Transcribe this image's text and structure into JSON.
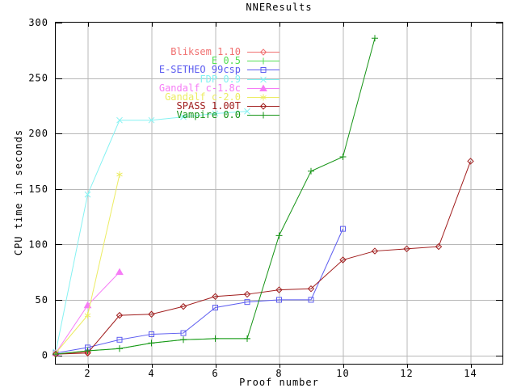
{
  "title": "NNEResults",
  "chart_data": {
    "type": "line",
    "title": "NNEResults",
    "xlabel": "Proof number",
    "ylabel": "CPU time in seconds",
    "xlim": [
      1,
      15
    ],
    "ylim": [
      0,
      300
    ],
    "xticks": [
      2,
      4,
      6,
      8,
      10,
      12,
      14
    ],
    "yticks": [
      0,
      50,
      100,
      150,
      200,
      250,
      300
    ],
    "grid": true,
    "grid_color": "#b8b8b8",
    "border_color": "#000000",
    "background": "#ffffff",
    "legend_position": "top-left-inside",
    "series": [
      {
        "name": "Bliksem 1.10",
        "color": "#f07070",
        "marker": "diamond",
        "points": [
          [
            1,
            1
          ],
          [
            2,
            3
          ]
        ]
      },
      {
        "name": "E 0.5",
        "color": "#54e054",
        "marker": "plus",
        "points": [
          [
            1,
            1
          ],
          [
            2,
            4
          ],
          [
            3,
            6
          ],
          [
            4,
            11
          ],
          [
            5,
            14
          ],
          [
            6,
            15
          ],
          [
            7,
            15
          ]
        ]
      },
      {
        "name": "E-SETHEO 99csp",
        "color": "#5c5cf0",
        "marker": "square",
        "points": [
          [
            1,
            2
          ],
          [
            2,
            7
          ],
          [
            3,
            14
          ],
          [
            4,
            19
          ],
          [
            5,
            20
          ],
          [
            6,
            43
          ],
          [
            7,
            48
          ],
          [
            8,
            50
          ],
          [
            9,
            50
          ],
          [
            10,
            114
          ]
        ]
      },
      {
        "name": "FDP 0.9",
        "color": "#85f2f2",
        "marker": "cross",
        "points": [
          [
            1,
            3
          ],
          [
            2,
            145
          ],
          [
            3,
            212
          ],
          [
            4,
            212
          ],
          [
            5,
            215
          ],
          [
            6,
            218
          ],
          [
            7,
            220
          ]
        ]
      },
      {
        "name": "Gandalf c-1.8c",
        "color": "#f67cf6",
        "marker": "triangle",
        "points": [
          [
            1,
            2
          ],
          [
            2,
            45
          ],
          [
            3,
            75
          ]
        ]
      },
      {
        "name": "Gandalf c-2.0",
        "color": "#ecec62",
        "marker": "asterisk",
        "points": [
          [
            1,
            2
          ],
          [
            2,
            36
          ],
          [
            3,
            163
          ]
        ]
      },
      {
        "name": "SPASS 1.00T",
        "color": "#a01c1c",
        "marker": "diamond",
        "points": [
          [
            1,
            1
          ],
          [
            2,
            2
          ],
          [
            3,
            36
          ],
          [
            4,
            37
          ],
          [
            5,
            44
          ],
          [
            6,
            53
          ],
          [
            7,
            55
          ],
          [
            8,
            59
          ],
          [
            9,
            60
          ],
          [
            10,
            86
          ],
          [
            11,
            94
          ],
          [
            12,
            96
          ],
          [
            13,
            98
          ],
          [
            14,
            175
          ]
        ]
      },
      {
        "name": "Vampire 0.0",
        "color": "#169416",
        "marker": "plus",
        "points": [
          [
            1,
            1
          ],
          [
            2,
            4
          ],
          [
            3,
            6
          ],
          [
            4,
            11
          ],
          [
            5,
            14
          ],
          [
            6,
            15
          ],
          [
            7,
            15
          ],
          [
            8,
            108
          ],
          [
            9,
            166
          ],
          [
            10,
            179
          ],
          [
            11,
            286
          ]
        ]
      }
    ]
  }
}
